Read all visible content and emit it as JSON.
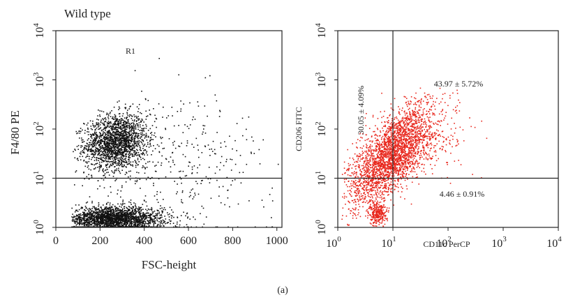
{
  "caption": "(a)",
  "chart_data": [
    {
      "type": "scatter",
      "title": "Wild type",
      "xlabel": "FSC-height",
      "ylabel": "F4/80 PE",
      "x_scale": "linear",
      "y_scale": "log",
      "xlim": [
        0,
        1023
      ],
      "ylim": [
        1,
        10000
      ],
      "x_ticks": [
        "0",
        "200",
        "400",
        "600",
        "800",
        "1000"
      ],
      "y_ticks": [
        {
          "base": "10",
          "exp": "0"
        },
        {
          "base": "10",
          "exp": "1"
        },
        {
          "base": "10",
          "exp": "2"
        },
        {
          "base": "10",
          "exp": "3"
        },
        {
          "base": "10",
          "exp": "4"
        }
      ],
      "gate_label": "R1",
      "gate_line_y": 10,
      "point_color": "#111111",
      "populations": [
        {
          "name": "",
          "count": 1800,
          "x_center": 270,
          "x_sd": 70,
          "y_log_center": 1.75,
          "y_log_sd": 0.28
        },
        {
          "name": "",
          "count": 2200,
          "x_center": 260,
          "x_sd": 110,
          "y_log_center": 0.18,
          "y_log_sd": 0.12
        },
        {
          "name": "",
          "count": 450,
          "x_center": 500,
          "x_sd": 250,
          "y_log_center": 1.3,
          "y_log_sd": 0.7
        }
      ]
    },
    {
      "type": "scatter",
      "title": "",
      "xlabel": "CD11c PerCP",
      "ylabel": "CD206 FITC",
      "x_scale": "log",
      "y_scale": "log",
      "xlim": [
        1,
        10000
      ],
      "ylim": [
        1,
        10000
      ],
      "x_ticks": [
        {
          "base": "10",
          "exp": "0"
        },
        {
          "base": "10",
          "exp": "1"
        },
        {
          "base": "10",
          "exp": "2"
        },
        {
          "base": "10",
          "exp": "3"
        },
        {
          "base": "10",
          "exp": "4"
        }
      ],
      "y_ticks": [
        {
          "base": "10",
          "exp": "0"
        },
        {
          "base": "10",
          "exp": "1"
        },
        {
          "base": "10",
          "exp": "2"
        },
        {
          "base": "10",
          "exp": "3"
        },
        {
          "base": "10",
          "exp": "4"
        }
      ],
      "quadrant_x": 10,
      "quadrant_y": 10,
      "point_color": "#e8261c",
      "quadrant_labels": {
        "upper_left": "30.05 ± 4.09%",
        "upper_right": "43.97 ± 5.72%",
        "lower_right": "4.46 ± 0.91%"
      },
      "populations": [
        {
          "name": "",
          "count": 2600,
          "x_log_center": 0.95,
          "x_log_sd": 0.38,
          "y_log_center": 1.45,
          "y_log_sd": 0.38
        },
        {
          "name": "",
          "count": 260,
          "x_log_center": 0.72,
          "x_log_sd": 0.08,
          "y_log_center": 0.3,
          "y_log_sd": 0.12
        },
        {
          "name": "",
          "count": 350,
          "x_log_center": 1.5,
          "x_log_sd": 0.45,
          "y_log_center": 1.9,
          "y_log_sd": 0.35
        }
      ]
    }
  ]
}
